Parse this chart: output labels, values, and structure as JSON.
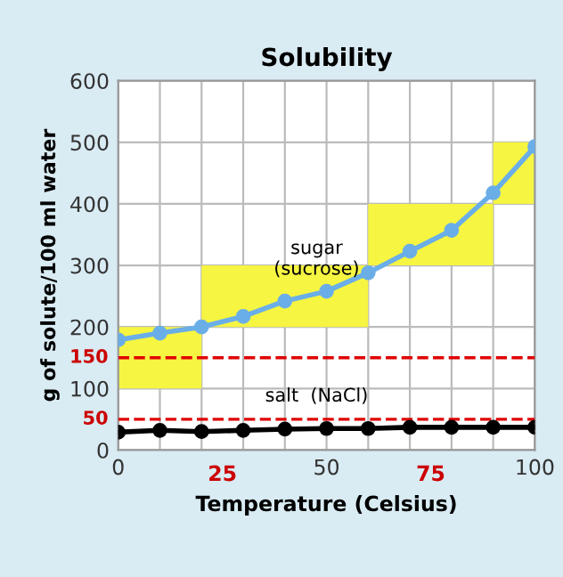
{
  "chart_data": {
    "type": "line",
    "title": "Solubility",
    "xlabel": "Temperature (Celsius)",
    "ylabel": "g of solute/100 ml water",
    "x": [
      0,
      10,
      20,
      30,
      40,
      50,
      60,
      70,
      80,
      90,
      100
    ],
    "series": [
      {
        "type": "step",
        "color": "#f5f542",
        "x": [
          0,
          20,
          60,
          90,
          100
        ],
        "values": [
          null,
          null,
          null,
          null,
          null
        ],
        "lower": [
          100,
          200,
          300,
          400,
          400
        ],
        "upper": [
          200,
          300,
          400,
          500,
          500
        ]
      },
      {
        "name": "sugar\n(sucrose)",
        "color": "#6aaee8",
        "values": [
          179,
          190,
          200,
          217,
          242,
          258,
          288,
          323,
          357,
          418,
          493
        ]
      },
      {
        "name": "salt  (NaCl)",
        "color": "#000000",
        "values": [
          29,
          32,
          30,
          32,
          34,
          35,
          35,
          37,
          37,
          37,
          37
        ]
      }
    ],
    "marker": "circle",
    "xlim": [
      0,
      100
    ],
    "ylim": [
      0,
      600
    ],
    "xticks": [
      0,
      {
        "value": 10,
        "label": null
      },
      {
        "value": 20,
        "label": null
      },
      {
        "value": 25,
        "label": "25"
      },
      {
        "value": 30,
        "label": null
      },
      {
        "value": 40,
        "label": null
      },
      50,
      {
        "value": 60,
        "label": null
      },
      {
        "value": 70,
        "label": null
      },
      {
        "value": 75,
        "label": "75"
      },
      {
        "value": 80,
        "label": null
      },
      {
        "value": 90,
        "label": null
      },
      100
    ],
    "yticks": [
      0,
      100,
      200,
      300,
      400,
      500,
      600
    ],
    "grid": true,
    "ref_lines": [
      {
        "axis": "y",
        "value": 150,
        "label": "150",
        "color": "#e00000",
        "line_style": "dashed"
      },
      {
        "axis": "y",
        "value": 50,
        "label": "50",
        "color": "#e00000",
        "line_style": "dashed"
      }
    ]
  }
}
